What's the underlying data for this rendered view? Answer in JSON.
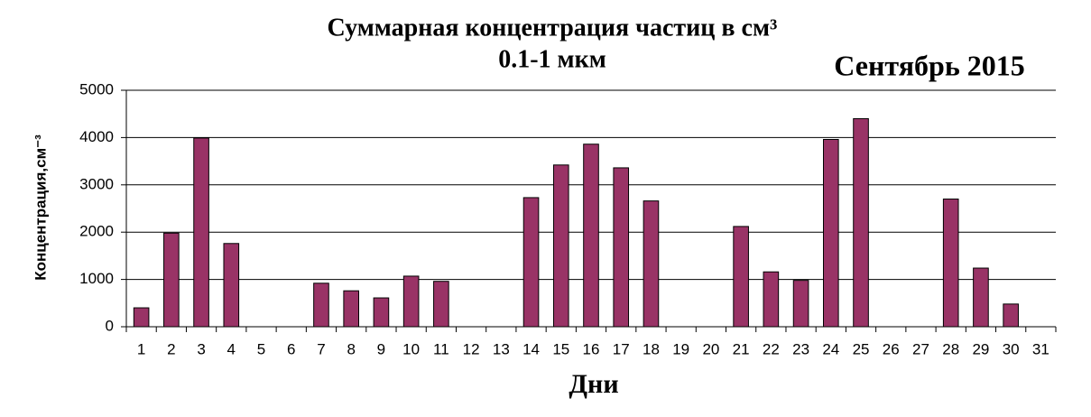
{
  "chart_data": {
    "type": "bar",
    "title": "Суммарная  концентрация частиц  в см³",
    "subtitle": "0.1-1 мкм",
    "annotation": "Сентябрь 2015",
    "x_label": "Дни",
    "y_label": "Концентрация,см⁻³",
    "categories": [
      "1",
      "2",
      "3",
      "4",
      "5",
      "6",
      "7",
      "8",
      "9",
      "10",
      "11",
      "12",
      "13",
      "14",
      "15",
      "16",
      "17",
      "18",
      "19",
      "20",
      "21",
      "22",
      "23",
      "24",
      "25",
      "26",
      "27",
      "28",
      "29",
      "30",
      "31"
    ],
    "values": [
      400,
      1980,
      3990,
      1760,
      null,
      null,
      920,
      760,
      610,
      1070,
      960,
      null,
      null,
      2730,
      3420,
      3860,
      3360,
      2660,
      null,
      null,
      2120,
      1160,
      980,
      3960,
      4400,
      null,
      null,
      2700,
      1240,
      480,
      null
    ],
    "color": "#993366",
    "ylim": [
      0,
      5000
    ],
    "yticks": [
      0,
      1000,
      2000,
      3000,
      4000,
      5000
    ],
    "grid": true
  }
}
